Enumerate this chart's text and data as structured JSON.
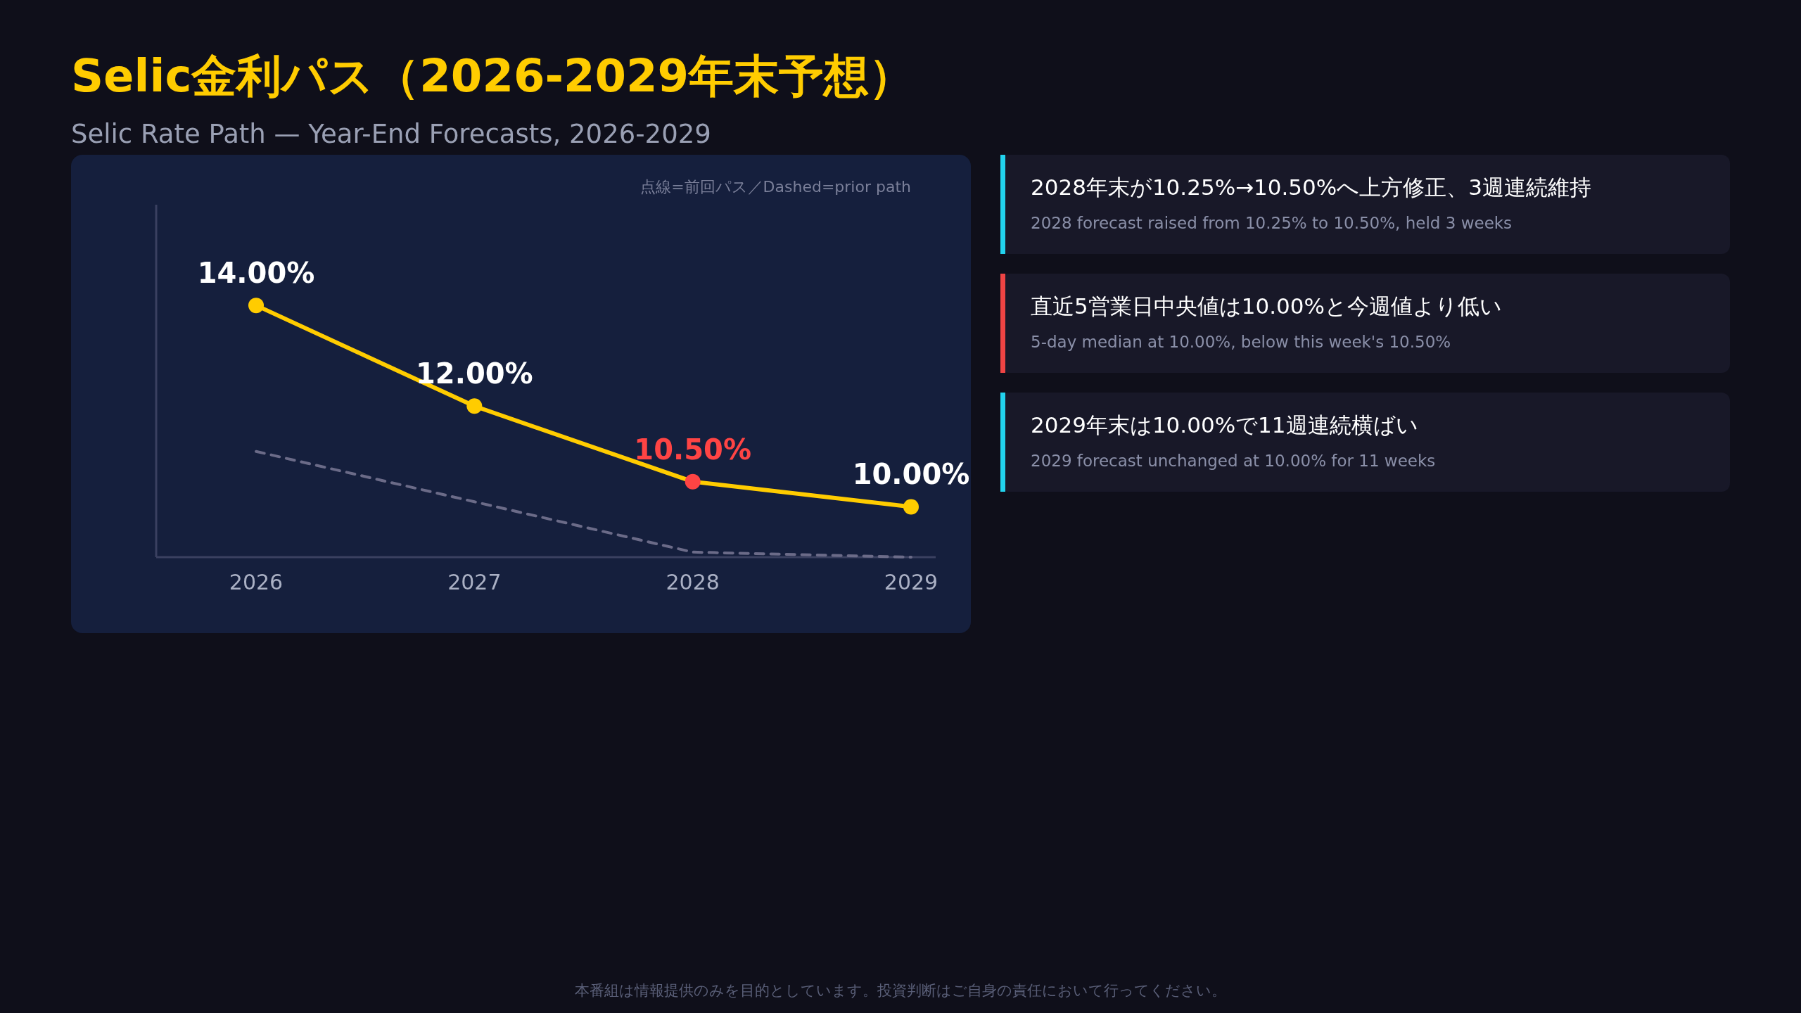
{
  "chart_data": [
    {
      "type": "line",
      "title": "Selic金利パス（2026-2029年末予想）",
      "subtitle": "Selic Rate Path — Year-End Forecasts, 2026-2029",
      "categories": [
        "2026",
        "2027",
        "2028",
        "2029"
      ],
      "ylim": [
        9,
        16
      ],
      "tick_labels": "x",
      "annotations": [
        "点線=前回パス／Dashed=prior path",
        "本番組は情報提供のみを目的としています。投資判断はご自身の責任において行ってください。"
      ],
      "series": [
        {
          "color": "#ffcc00",
          "colors": [
            "#ffcc00",
            "#ffcc00",
            "#ff4444",
            "#ffcc00"
          ],
          "values": [
            14,
            12,
            10.5,
            10
          ],
          "value_labels": [
            "14.00%",
            "12.00%",
            "10.50%",
            "10.00%"
          ],
          "marker": "circle",
          "line_style": "solid"
        },
        {
          "color": "#6b6b88",
          "values": [
            11.1,
            10.1,
            9.1,
            9.0
          ],
          "marker": "none",
          "line_style": "dashed"
        }
      ]
    },
    {
      "type": "other",
      "annotations": [
        "2028年末が10.25%→10.50%へ上方修正、3週連続維持",
        "2028 forecast raised from 10.25% to 10.50%, held 3 weeks",
        "直近5営業日中央値は10.00%と今週値より低い",
        "5-day median at 10.00%, below this week's 10.50%",
        "2029年末は10.00%で11週連続横ばい",
        "2029 forecast unchanged at 10.00% for 11 weeks"
      ]
    }
  ]
}
